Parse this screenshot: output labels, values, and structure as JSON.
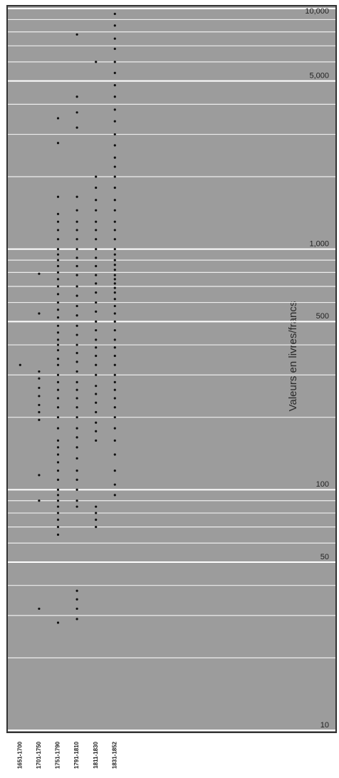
{
  "chart_data": {
    "type": "strip",
    "y_axis_label": "Valeurs en livres/francs",
    "categories": [
      "1651-1700",
      "1701-1750",
      "1751-1790",
      "1791-1810",
      "1811-1830",
      "1831-1852"
    ],
    "values": [
      [
        330
      ],
      [
        790,
        540,
        310,
        290,
        265,
        245,
        225,
        210,
        195,
        115,
        90,
        32
      ],
      [
        3500,
        2760,
        1650,
        1400,
        1300,
        1200,
        1100,
        1000,
        950,
        900,
        850,
        800,
        750,
        700,
        650,
        600,
        560,
        520,
        480,
        450,
        420,
        400,
        380,
        350,
        330,
        300,
        280,
        260,
        240,
        220,
        200,
        180,
        160,
        150,
        140,
        130,
        120,
        110,
        100,
        95,
        90,
        85,
        80,
        75,
        70,
        65,
        28
      ],
      [
        7800,
        4300,
        3700,
        3200,
        1650,
        1450,
        1300,
        1200,
        1100,
        1000,
        920,
        850,
        780,
        700,
        640,
        580,
        530,
        480,
        440,
        400,
        370,
        340,
        310,
        280,
        260,
        240,
        220,
        200,
        180,
        165,
        150,
        135,
        120,
        110,
        100,
        90,
        85,
        38,
        35,
        32,
        29
      ],
      [
        6000,
        2000,
        1800,
        1600,
        1450,
        1300,
        1200,
        1100,
        1000,
        920,
        850,
        780,
        720,
        660,
        600,
        550,
        500,
        460,
        420,
        390,
        360,
        330,
        300,
        270,
        250,
        230,
        210,
        190,
        175,
        160,
        85,
        80,
        75,
        70
      ],
      [
        9500,
        8500,
        7500,
        6800,
        6000,
        5400,
        4800,
        4300,
        3800,
        3400,
        3000,
        2700,
        2400,
        2200,
        2000,
        1800,
        1600,
        1450,
        1300,
        1200,
        1100,
        1000,
        950,
        900,
        860,
        820,
        780,
        750,
        720,
        690,
        660,
        620,
        580,
        540,
        500,
        460,
        420,
        390,
        360,
        330,
        300,
        280,
        260,
        240,
        220,
        200,
        180,
        160,
        140,
        120,
        105,
        95
      ]
    ],
    "color": "#111111",
    "background": "#9c9c9c",
    "ylim": [
      10,
      10000
    ],
    "log_y": true,
    "yticks": [
      {
        "value": 10000,
        "label": "10,000"
      },
      {
        "value": 5000,
        "label": "5,000"
      },
      {
        "value": 1000,
        "label": "1,000"
      },
      500,
      100,
      50,
      10
    ],
    "grid": true,
    "minor_grid": [
      20,
      30,
      40,
      60,
      70,
      80,
      90,
      200,
      300,
      400,
      600,
      700,
      800,
      900,
      2000,
      3000,
      4000,
      6000,
      7000,
      8000,
      9000
    ]
  }
}
